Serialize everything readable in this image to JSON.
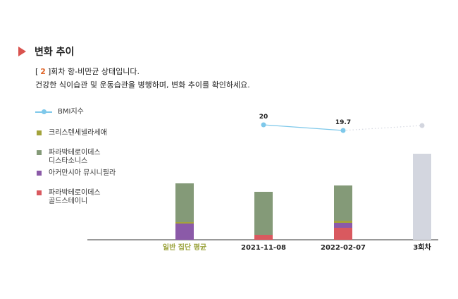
{
  "section": {
    "title": "변화 추이",
    "bracket_open": "[",
    "round_number": "2",
    "bracket_close": "]",
    "status_text": "회차 항-비만균 상태입니다.",
    "advice_text": "건강한 식이습관 및 운동습관을 병행하며, 변화 추이를 확인하세요."
  },
  "legend": [
    {
      "label": "BMI지수",
      "kind": "line",
      "color": "#7ec8ea"
    },
    {
      "label": "크리스텐세넬라세애",
      "kind": "square",
      "color": "#a3a33b"
    },
    {
      "label": "파라박테로이데스\n디스타소니스",
      "kind": "square",
      "color": "#849a78"
    },
    {
      "label": "아커만시아 뮤시니필라",
      "kind": "square",
      "color": "#8b5aa8"
    },
    {
      "label": "파라박테로이데스\n골드스테이니",
      "kind": "square",
      "color": "#d9595f"
    }
  ],
  "chart_data": {
    "type": "bar",
    "stacked": true,
    "categories": [
      "일반 집단 평균",
      "2021-11-08",
      "2022-02-07",
      "3회차"
    ],
    "category_colors": [
      "#9aa23a",
      "#222222",
      "#222222",
      "#222222"
    ],
    "series": [
      {
        "name": "파라박테로이데스 골드스테이니",
        "color": "#d9595f",
        "values": [
          0,
          7,
          17,
          null
        ]
      },
      {
        "name": "아커만시아 뮤시니필라",
        "color": "#8b5aa8",
        "values": [
          23,
          0,
          7,
          null
        ]
      },
      {
        "name": "크리스텐세넬라세애",
        "color": "#a3a33b",
        "values": [
          2,
          0,
          3,
          null
        ]
      },
      {
        "name": "파라박테로이데스 디스타소니스",
        "color": "#849a78",
        "values": [
          55,
          61,
          50,
          null
        ]
      }
    ],
    "placeholder": {
      "category": "3회차",
      "value": 122,
      "color": "#d3d6df"
    },
    "bmi": {
      "name": "BMI지수",
      "color": "#7ec8ea",
      "values": [
        null,
        20,
        19.7,
        null
      ],
      "labels": [
        "",
        "20",
        "19.7",
        ""
      ],
      "placeholder_color": "#d3d6df"
    },
    "ylim": [
      0,
      130
    ],
    "grid": false,
    "legend_position": "left"
  }
}
